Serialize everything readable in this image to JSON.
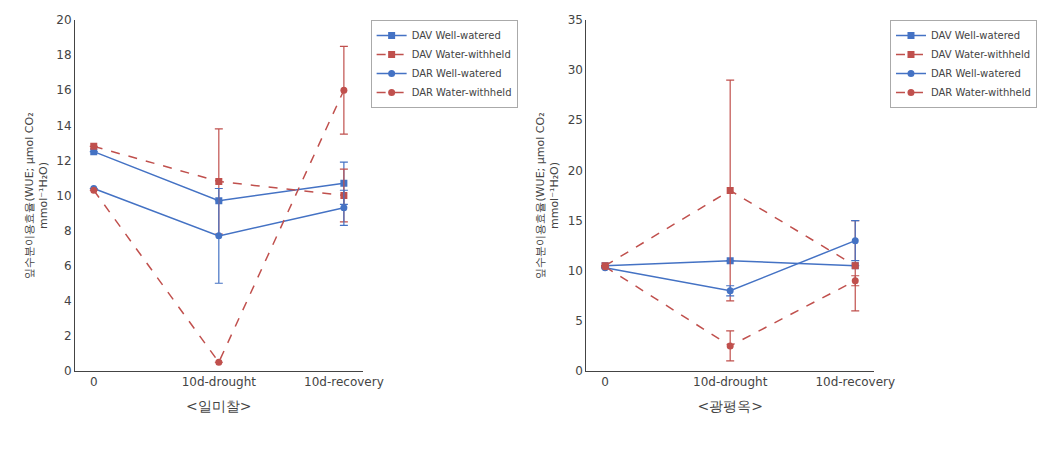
{
  "chart_data": [
    {
      "type": "line",
      "xlabel": "<일미찰>",
      "ylabel": "잎수분이용효율(WUE; μmol CO₂\nmmol⁻¹H₂O)",
      "categories": [
        "0",
        "10d-drought",
        "10d-recovery"
      ],
      "ylim": [
        0,
        20
      ],
      "yticks": [
        0,
        2,
        4,
        6,
        8,
        10,
        12,
        14,
        16,
        18,
        20
      ],
      "grid": false,
      "legend": "upper right",
      "series": [
        {
          "name": "DAV Well-watered",
          "color": "#4472C4",
          "marker": "square",
          "line_style": "solid",
          "values": [
            12.5,
            9.7,
            10.7
          ],
          "errors": [
            0.0,
            0.0,
            1.2
          ]
        },
        {
          "name": "DAV Water-withheld",
          "color": "#C0504D",
          "marker": "square",
          "line_style": "dash",
          "values": [
            12.8,
            10.8,
            10.0
          ],
          "errors": [
            0.0,
            3.0,
            1.5
          ]
        },
        {
          "name": "DAR Well-watered",
          "color": "#4472C4",
          "marker": "circle",
          "line_style": "solid",
          "values": [
            10.4,
            7.7,
            9.3
          ],
          "errors": [
            0.0,
            2.7,
            1.0
          ]
        },
        {
          "name": "DAR Water-withheld",
          "color": "#C0504D",
          "marker": "circle",
          "line_style": "dash",
          "values": [
            10.3,
            0.5,
            16.0
          ],
          "errors": [
            0.0,
            0.0,
            2.5
          ]
        }
      ]
    },
    {
      "type": "line",
      "xlabel": "<광평옥>",
      "ylabel": "잎수분이용효율(WUE; μmol CO₂\nmmol⁻¹H₂O)",
      "categories": [
        "0",
        "10d-drought",
        "10d-recovery"
      ],
      "ylim": [
        0,
        35
      ],
      "yticks": [
        0,
        5,
        10,
        15,
        20,
        25,
        30,
        35
      ],
      "grid": false,
      "legend": "upper right",
      "series": [
        {
          "name": "DAV Well-watered",
          "color": "#4472C4",
          "marker": "square",
          "line_style": "solid",
          "values": [
            10.5,
            11.0,
            10.5
          ],
          "errors": [
            0.0,
            0.0,
            0.0
          ]
        },
        {
          "name": "DAV Water-withheld",
          "color": "#C0504D",
          "marker": "square",
          "line_style": "dash",
          "values": [
            10.5,
            18.0,
            10.5
          ],
          "errors": [
            0.0,
            11.0,
            4.5
          ]
        },
        {
          "name": "DAR Well-watered",
          "color": "#4472C4",
          "marker": "circle",
          "line_style": "solid",
          "values": [
            10.3,
            8.0,
            13.0
          ],
          "errors": [
            0.0,
            0.5,
            2.0
          ]
        },
        {
          "name": "DAR Water-withheld",
          "color": "#C0504D",
          "marker": "circle",
          "line_style": "dash",
          "values": [
            10.4,
            2.5,
            9.0
          ],
          "errors": [
            0.0,
            1.5,
            0.5
          ]
        }
      ]
    }
  ]
}
